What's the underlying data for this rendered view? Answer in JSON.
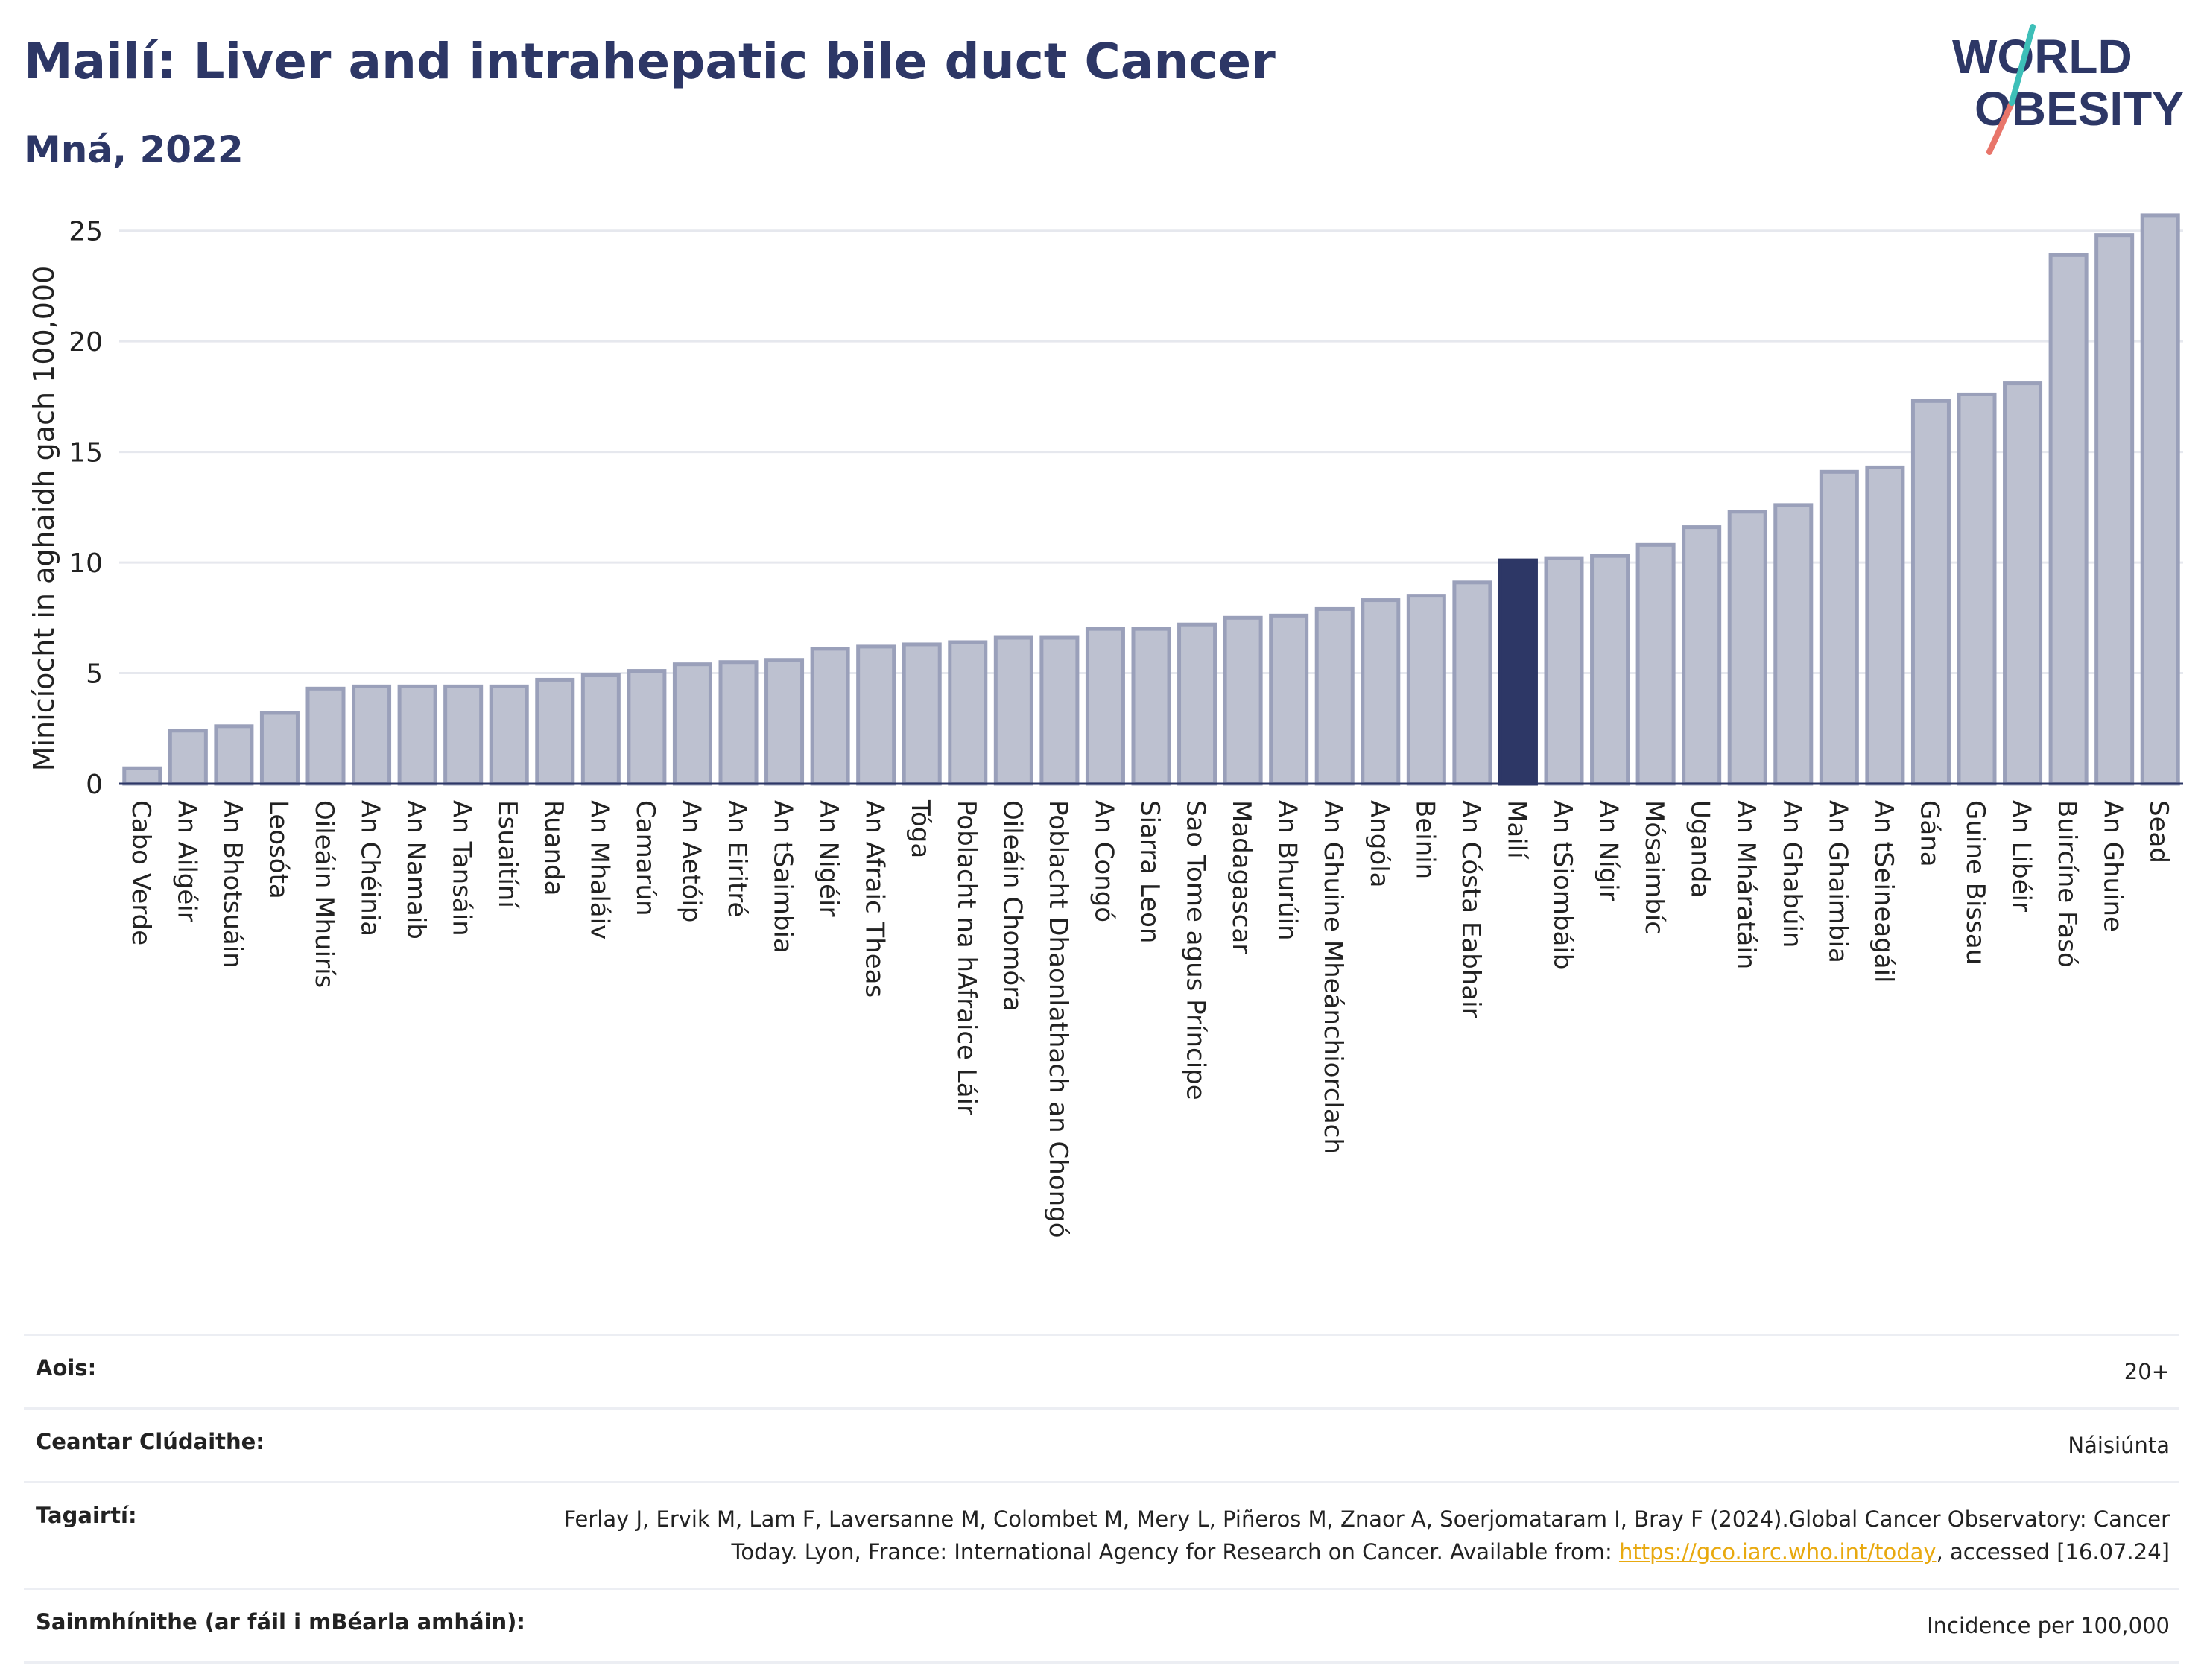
{
  "header": {
    "title": "Mailí: Liver and intrahepatic bile duct Cancer",
    "subtitle": "Mná, 2022"
  },
  "logo": {
    "line1": "WORLD",
    "line2": "OBESITY"
  },
  "colors": {
    "bar": "#bdc1d0",
    "bar_stroke": "#9aa0ba",
    "highlight": "#2d3766",
    "text": "#2d3766"
  },
  "chart_data": {
    "type": "bar",
    "ylabel": "Minicíocht in aghaidh gach 100,000",
    "ylim": [
      0,
      26
    ],
    "yticks": [
      0,
      5,
      10,
      15,
      20,
      25
    ],
    "grid": true,
    "highlight": "Mailí",
    "categories": [
      "Cabo Verde",
      "An Ailgéir",
      "An Bhotsuáin",
      "Leosóta",
      "Oileáin Mhuirís",
      "An Chéinia",
      "An Namaib",
      "An Tansáin",
      "Esuaitíní",
      "Ruanda",
      "An Mhaláiv",
      "Camarún",
      "An Aetóip",
      "An Eiritré",
      "An tSaimbia",
      "An Nigéir",
      "An Afraic Theas",
      "Tóga",
      "Poblacht na hAfraice Láir",
      "Oileáin Chomóra",
      "Poblacht Dhaonlathach an Chongó",
      "An Congó",
      "Siarra Leon",
      "Sao Tome agus Príncipe",
      "Madagascar",
      "An Bhurúin",
      "An Ghuine Mheánchiorclach",
      "Angóla",
      "Beinin",
      "An Cósta Eabhair",
      "Mailí",
      "An tSiombáib",
      "An Nígir",
      "Mósaimbíc",
      "Uganda",
      "An Mháratáin",
      "An Ghabúin",
      "An Ghaimbia",
      "An tSeineagáil",
      "Gána",
      "Guine Bissau",
      "An Libéir",
      "Buircíne Fasó",
      "An Ghuine",
      "Sead"
    ],
    "values": [
      0.7,
      2.4,
      2.6,
      3.2,
      4.3,
      4.4,
      4.4,
      4.4,
      4.4,
      4.7,
      4.9,
      5.1,
      5.4,
      5.5,
      5.6,
      6.1,
      6.2,
      6.3,
      6.4,
      6.6,
      6.6,
      7.0,
      7.0,
      7.2,
      7.5,
      7.6,
      7.9,
      8.3,
      8.5,
      9.1,
      10.1,
      10.2,
      10.3,
      10.8,
      11.6,
      12.3,
      12.6,
      14.1,
      14.3,
      17.3,
      17.6,
      18.1,
      23.9,
      24.8,
      25.7
    ]
  },
  "info": {
    "age_label": "Aois:",
    "age_value": "20+",
    "area_label": "Ceantar Clúdaithe:",
    "area_value": "Náisiúnta",
    "ref_label": "Tagairtí:",
    "ref_text_1": "Ferlay J, Ervik M, Lam F, Laversanne M, Colombet M, Mery L, Piñeros M, Znaor A, Soerjomataram I, Bray F (2024).Global Cancer Observatory: Cancer Today. Lyon, France: International Agency for Research on Cancer. Available from: ",
    "ref_link": "https://gco.iarc.who.int/today",
    "ref_text_2": ", accessed [16.07.24]",
    "def_label": "Sainmhínithe (ar fáil i mBéarla amháin):",
    "def_value": "Incidence per 100,000"
  }
}
